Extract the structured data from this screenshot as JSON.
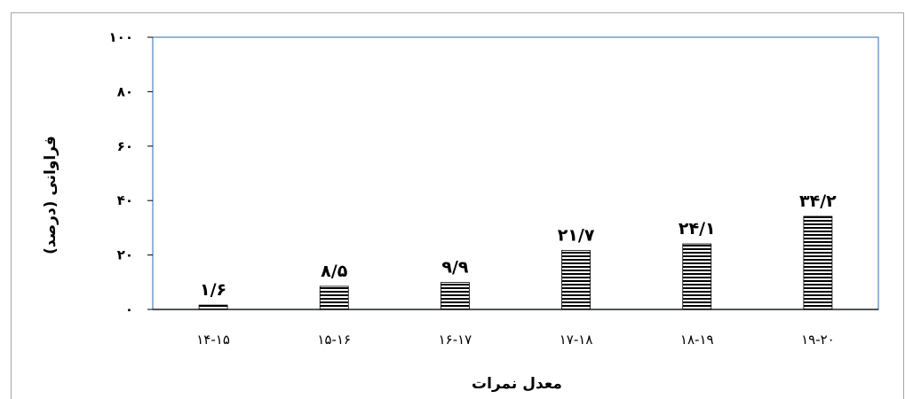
{
  "chart_data": {
    "type": "bar",
    "categories": [
      "۱۴-۱۵",
      "۱۵-۱۶",
      "۱۶-۱۷",
      "۱۷-۱۸",
      "۱۸-۱۹",
      "۱۹-۲۰"
    ],
    "values": [
      1.6,
      8.5,
      9.9,
      21.7,
      24.1,
      34.2
    ],
    "data_labels": [
      "۱/۶",
      "۸/۵",
      "۹/۹",
      "۲۱/۷",
      "۲۴/۱",
      "۳۴/۲"
    ],
    "yticks": [
      0,
      20,
      40,
      60,
      80,
      100
    ],
    "ytick_labels": [
      "۰",
      "۲۰",
      "۴۰",
      "۶۰",
      "۸۰",
      "۱۰۰"
    ],
    "ylim": [
      0,
      100
    ],
    "xlabel": "معدل نمرات",
    "ylabel": "فراوانی (درصد)",
    "title": "",
    "bar_pattern": "horizontal-stripes",
    "colors": {
      "bar_stroke": "#000000",
      "plot_border": "#4f81bd",
      "frame": "#a6a6a6"
    },
    "grid": false,
    "legend": "none"
  }
}
